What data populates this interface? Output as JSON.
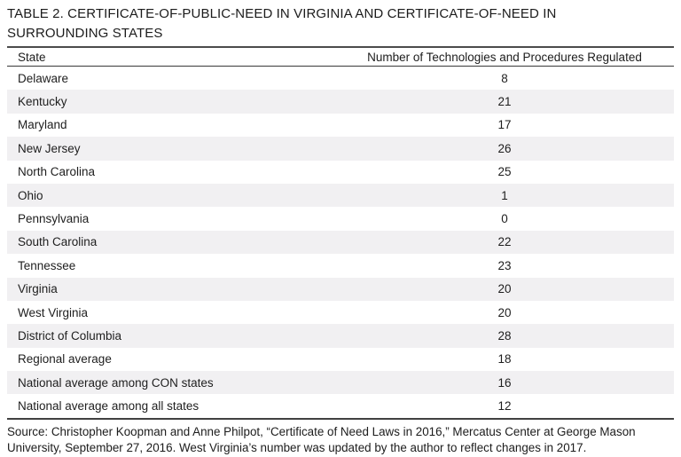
{
  "page": {
    "title_line1": "TABLE 2. CERTIFICATE-OF-PUBLIC-NEED IN VIRGINIA AND CERTIFICATE-OF-NEED IN",
    "title_line2": "SURROUNDING STATES"
  },
  "table": {
    "columns": [
      "State",
      "Number of Technologies and Procedures Regulated"
    ],
    "rows": [
      {
        "state": "Delaware",
        "value": "8"
      },
      {
        "state": "Kentucky",
        "value": "21"
      },
      {
        "state": "Maryland",
        "value": "17"
      },
      {
        "state": "New Jersey",
        "value": "26"
      },
      {
        "state": "North Carolina",
        "value": "25"
      },
      {
        "state": "Ohio",
        "value": "1"
      },
      {
        "state": "Pennsylvania",
        "value": "0"
      },
      {
        "state": "South Carolina",
        "value": "22"
      },
      {
        "state": "Tennessee",
        "value": "23"
      },
      {
        "state": "Virginia",
        "value": "20"
      },
      {
        "state": "West Virginia",
        "value": "20"
      },
      {
        "state": "District of Columbia",
        "value": "28"
      },
      {
        "state": "Regional average",
        "value": "18"
      },
      {
        "state": "National average among CON states",
        "value": "16"
      },
      {
        "state": "National average among all states",
        "value": "12"
      }
    ]
  },
  "source": {
    "line1": "Source: Christopher Koopman and Anne Philpot, “Certificate of Need Laws in 2016,” Mercatus Center at George Mason",
    "line2": "University, September 27, 2016. West Virginia’s number was updated by the author to reflect changes in 2017."
  },
  "colors": {
    "row_alt_background": "#f1f0f2",
    "rule_dark": "#4c4c4c",
    "text": "#1e1e1e"
  }
}
